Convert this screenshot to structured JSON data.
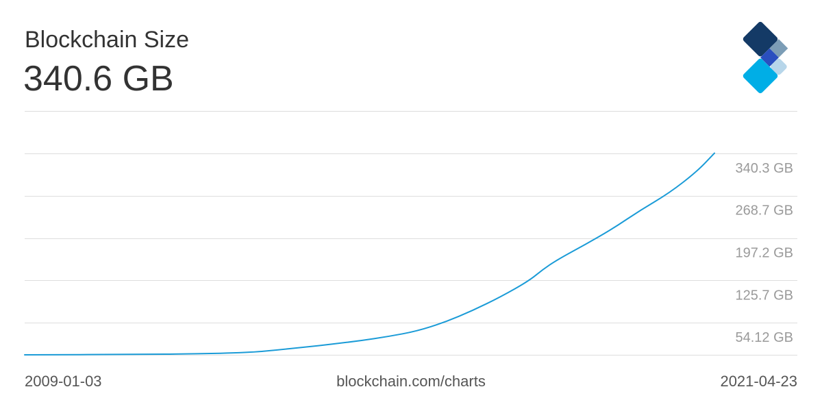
{
  "header": {
    "title": "Blockchain Size",
    "current_value": "340.6 GB"
  },
  "footer": {
    "start_date": "2009-01-03",
    "source": "blockchain.com/charts",
    "end_date": "2021-04-23"
  },
  "colors": {
    "line": "#1a9bd7",
    "grid": "#dddddd",
    "tick_text": "#9a9a9a",
    "logo_navy": "#143a66",
    "logo_gray_blue": "#7c9db6",
    "logo_blue": "#2a4fbf",
    "logo_cyan": "#00aee6",
    "logo_light": "#b7d6ea"
  },
  "logo": {
    "icon": "blockchain-diamond-logo"
  },
  "chart_data": {
    "type": "line",
    "x_range": [
      "2009-01-03",
      "2021-04-23"
    ],
    "ylim": [
      0,
      411.8
    ],
    "y_ticks": [
      54.12,
      125.7,
      197.2,
      268.7,
      340.3
    ],
    "y_tick_labels": [
      "54.12 GB",
      "125.7 GB",
      "197.2 GB",
      "268.7 GB",
      "340.3 GB"
    ],
    "grid": true,
    "series": [
      {
        "points": [
          [
            "2009-01-03",
            0.0
          ],
          [
            "2011-01-01",
            0.6
          ],
          [
            "2012-01-01",
            1.6
          ],
          [
            "2013-01-01",
            3.8
          ],
          [
            "2013-07-01",
            8.0
          ],
          [
            "2014-01-01",
            13.0
          ],
          [
            "2014-07-01",
            18.0
          ],
          [
            "2015-01-01",
            24.0
          ],
          [
            "2015-07-01",
            31.0
          ],
          [
            "2016-01-01",
            40.0
          ],
          [
            "2016-07-01",
            55.0
          ],
          [
            "2017-01-01",
            75.0
          ],
          [
            "2017-07-01",
            98.0
          ],
          [
            "2018-01-01",
            125.0
          ],
          [
            "2018-04-01",
            144.0
          ],
          [
            "2018-07-01",
            160.0
          ],
          [
            "2019-01-01",
            186.0
          ],
          [
            "2019-07-01",
            213.0
          ],
          [
            "2020-01-01",
            245.0
          ],
          [
            "2020-07-01",
            273.0
          ],
          [
            "2021-01-01",
            310.0
          ],
          [
            "2021-04-23",
            340.6
          ]
        ]
      }
    ]
  }
}
